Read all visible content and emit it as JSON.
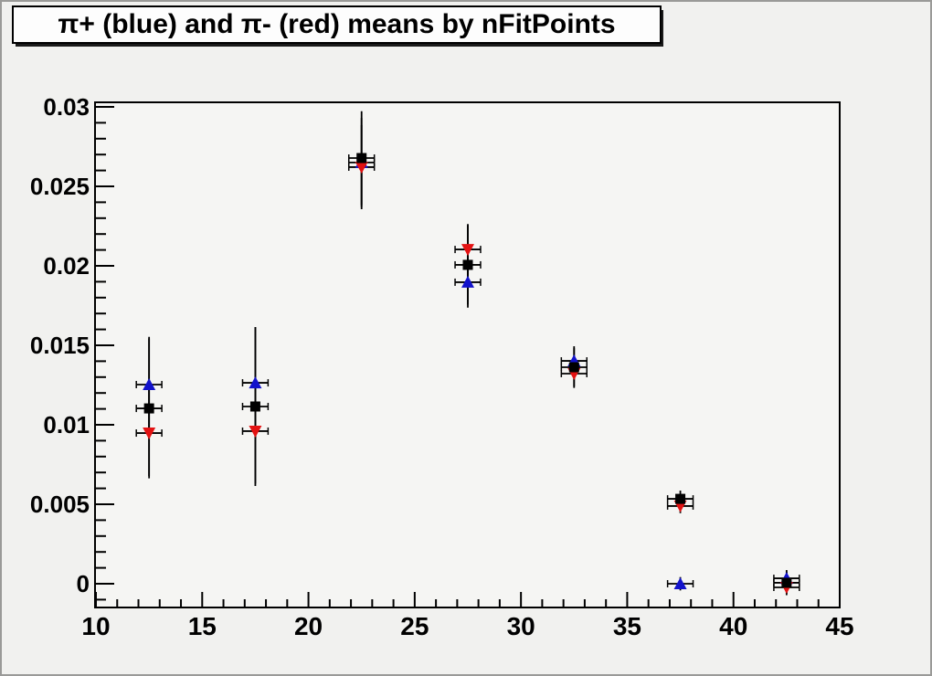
{
  "title": "π+ (blue) and π- (red) means by nFitPoints",
  "chart_data": {
    "type": "scatter",
    "title": "π+ (blue) and π- (red) means by nFitPoints",
    "xlabel": "",
    "ylabel": "",
    "xlim": [
      10,
      45
    ],
    "ylim": [
      -0.0015,
      0.0303
    ],
    "grid": false,
    "legend": "none",
    "x_tick_labels": [
      "10",
      "15",
      "20",
      "25",
      "30",
      "35",
      "40",
      "45"
    ],
    "y_tick_labels": [
      "0",
      "0.005",
      "0.01",
      "0.015",
      "0.02",
      "0.025",
      "0.03"
    ],
    "x_minor_step": 1,
    "y_minor_step": 0.001,
    "x": [
      12.5,
      17.5,
      22.5,
      27.5,
      32.5,
      37.5,
      42.5
    ],
    "xerr_half_width": 0.6,
    "colors": {
      "blue": "#1313cc",
      "red": "#e31212",
      "black": "#000000",
      "error_bar": "#000000"
    },
    "series": [
      {
        "name": "pi-plus-blue",
        "marker": "triangle-up",
        "color": "#1313cc",
        "y": [
          0.01253,
          0.01264,
          0.0265,
          0.01897,
          0.01402,
          0.0,
          0.00034
        ],
        "yerr": [
          0.003,
          0.0035,
          0.0028,
          0.0016,
          0.00092,
          0.00042,
          0.00052
        ]
      },
      {
        "name": "pi-minus-red",
        "marker": "triangle-down",
        "color": "#e31212",
        "y": [
          0.00948,
          0.0096,
          0.02621,
          0.02103,
          0.01322,
          0.00489,
          -0.00023
        ],
        "yerr": [
          0.0027,
          0.0033,
          0.00265,
          0.0016,
          0.0009,
          0.00045,
          0.00049
        ]
      },
      {
        "name": "black-square-mean",
        "marker": "square",
        "color": "#000000",
        "y": [
          0.01103,
          0.01115,
          0.02678,
          0.02006,
          0.01362,
          0.00534,
          6e-05
        ],
        "yerr": [
          0.0044,
          0.005,
          0.00295,
          0.0025,
          0.0012,
          0.00052,
          0.00069
        ]
      }
    ]
  }
}
